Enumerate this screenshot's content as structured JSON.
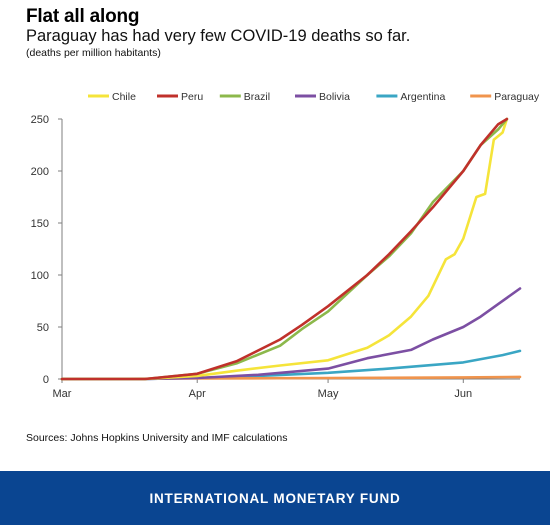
{
  "header": {
    "title": "Flat all along",
    "subtitle": "Paraguay has had very few COVID-19 deaths so far.",
    "units": "(deaths per million habitants)"
  },
  "source": "Sources: Johns Hopkins University and IMF calculations",
  "footer": {
    "org": "INTERNATIONAL MONETARY FUND"
  },
  "colors": {
    "footer_bg": "#0a4591"
  },
  "chart_data": {
    "type": "line",
    "title": "",
    "xlabel": "",
    "ylabel": "deaths per million habitants",
    "x_ticks": [
      "Mar",
      "Apr",
      "May",
      "Jun"
    ],
    "x_range": [
      "2020-03-01",
      "2020-06-14"
    ],
    "y_ticks": [
      0,
      50,
      100,
      150,
      200,
      250
    ],
    "ylim": [
      0,
      250
    ],
    "grid": false,
    "legend": "top",
    "series": [
      {
        "name": "Chile",
        "color": "#f5e43a",
        "x": [
          "2020-03-01",
          "2020-03-20",
          "2020-04-01",
          "2020-04-10",
          "2020-04-20",
          "2020-05-01",
          "2020-05-10",
          "2020-05-15",
          "2020-05-20",
          "2020-05-24",
          "2020-05-28",
          "2020-05-30",
          "2020-06-01",
          "2020-06-04",
          "2020-06-06",
          "2020-06-08",
          "2020-06-10",
          "2020-06-11"
        ],
        "values": [
          0,
          0,
          3,
          8,
          13,
          18,
          30,
          42,
          60,
          80,
          115,
          120,
          135,
          175,
          178,
          230,
          237,
          250
        ]
      },
      {
        "name": "Peru",
        "color": "#c0312b",
        "x": [
          "2020-03-01",
          "2020-03-20",
          "2020-04-01",
          "2020-04-10",
          "2020-04-20",
          "2020-04-25",
          "2020-05-01",
          "2020-05-10",
          "2020-05-15",
          "2020-05-20",
          "2020-05-25",
          "2020-06-01",
          "2020-06-05",
          "2020-06-09",
          "2020-06-11"
        ],
        "values": [
          0,
          0,
          5,
          17,
          38,
          52,
          70,
          100,
          120,
          142,
          165,
          200,
          225,
          245,
          250
        ]
      },
      {
        "name": "Brazil",
        "color": "#8cb84b",
        "x": [
          "2020-03-01",
          "2020-03-20",
          "2020-04-01",
          "2020-04-10",
          "2020-04-20",
          "2020-04-25",
          "2020-05-01",
          "2020-05-10",
          "2020-05-15",
          "2020-05-20",
          "2020-05-25",
          "2020-06-01",
          "2020-06-05",
          "2020-06-09",
          "2020-06-11"
        ],
        "values": [
          0,
          0,
          5,
          15,
          32,
          48,
          65,
          100,
          118,
          140,
          170,
          200,
          225,
          240,
          250
        ]
      },
      {
        "name": "Bolivia",
        "color": "#7c4fa3",
        "x": [
          "2020-03-01",
          "2020-03-20",
          "2020-04-01",
          "2020-04-15",
          "2020-05-01",
          "2020-05-10",
          "2020-05-20",
          "2020-05-25",
          "2020-06-01",
          "2020-06-05",
          "2020-06-09",
          "2020-06-14"
        ],
        "values": [
          0,
          0,
          1,
          4,
          10,
          20,
          28,
          38,
          50,
          60,
          72,
          87
        ]
      },
      {
        "name": "Argentina",
        "color": "#3aa6c4",
        "x": [
          "2020-03-01",
          "2020-03-20",
          "2020-04-01",
          "2020-04-15",
          "2020-05-01",
          "2020-05-15",
          "2020-06-01",
          "2020-06-10",
          "2020-06-14"
        ],
        "values": [
          0,
          0,
          1,
          3,
          6,
          10,
          16,
          23,
          27
        ]
      },
      {
        "name": "Paraguay",
        "color": "#f0944d",
        "x": [
          "2020-03-01",
          "2020-04-01",
          "2020-05-01",
          "2020-06-01",
          "2020-06-14"
        ],
        "values": [
          0,
          0.5,
          1,
          1.5,
          2
        ]
      }
    ]
  }
}
